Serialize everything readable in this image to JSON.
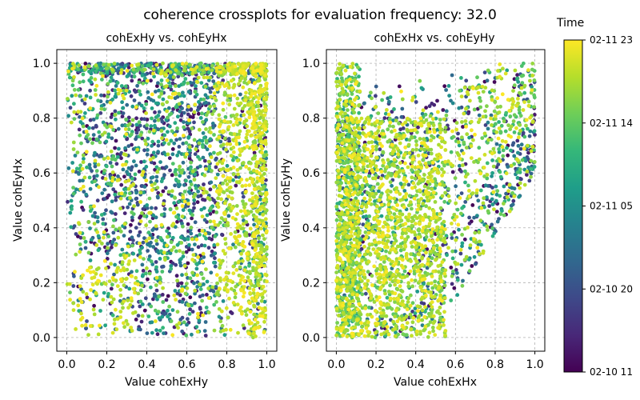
{
  "figure_title": "coherence crossplots for evaluation frequency: 32.0",
  "colorbar": {
    "label": "Time",
    "colormap": "viridis",
    "colors": [
      "#440154",
      "#482878",
      "#3e4989",
      "#31688e",
      "#26828e",
      "#1f9e89",
      "#35b779",
      "#6ece58",
      "#b5de2b",
      "#fde725"
    ],
    "ticks": [
      "02-10 11",
      "02-10 20",
      "02-11 05",
      "02-11 14",
      "02-11 23"
    ]
  },
  "grid_color": "#b0b0b0",
  "chart_data": [
    {
      "type": "scatter",
      "title": "cohExHy vs. cohEyHx",
      "xlabel": "Value cohExHy",
      "ylabel": "Value cohEyHx",
      "xlim": [
        -0.05,
        1.05
      ],
      "ylim": [
        -0.05,
        1.05
      ],
      "xticks": [
        "0.0",
        "0.2",
        "0.4",
        "0.6",
        "0.8",
        "1.0"
      ],
      "yticks": [
        "0.0",
        "0.2",
        "0.4",
        "0.6",
        "0.8",
        "1.0"
      ],
      "grid": true,
      "distribution": "uniform-with-edge-clusters",
      "color_by": "Time"
    },
    {
      "type": "scatter",
      "title": "cohExHx vs. cohEyHy",
      "xlabel": "Value cohExHx",
      "ylabel": "Value cohEyHy",
      "xlim": [
        -0.05,
        1.05
      ],
      "ylim": [
        -0.05,
        1.05
      ],
      "xticks": [
        "0.0",
        "0.2",
        "0.4",
        "0.6",
        "0.8",
        "1.0"
      ],
      "yticks": [
        "0.0",
        "0.2",
        "0.4",
        "0.6",
        "0.8",
        "1.0"
      ],
      "grid": true,
      "distribution": "wedge-along-diagonal",
      "color_by": "Time"
    }
  ]
}
